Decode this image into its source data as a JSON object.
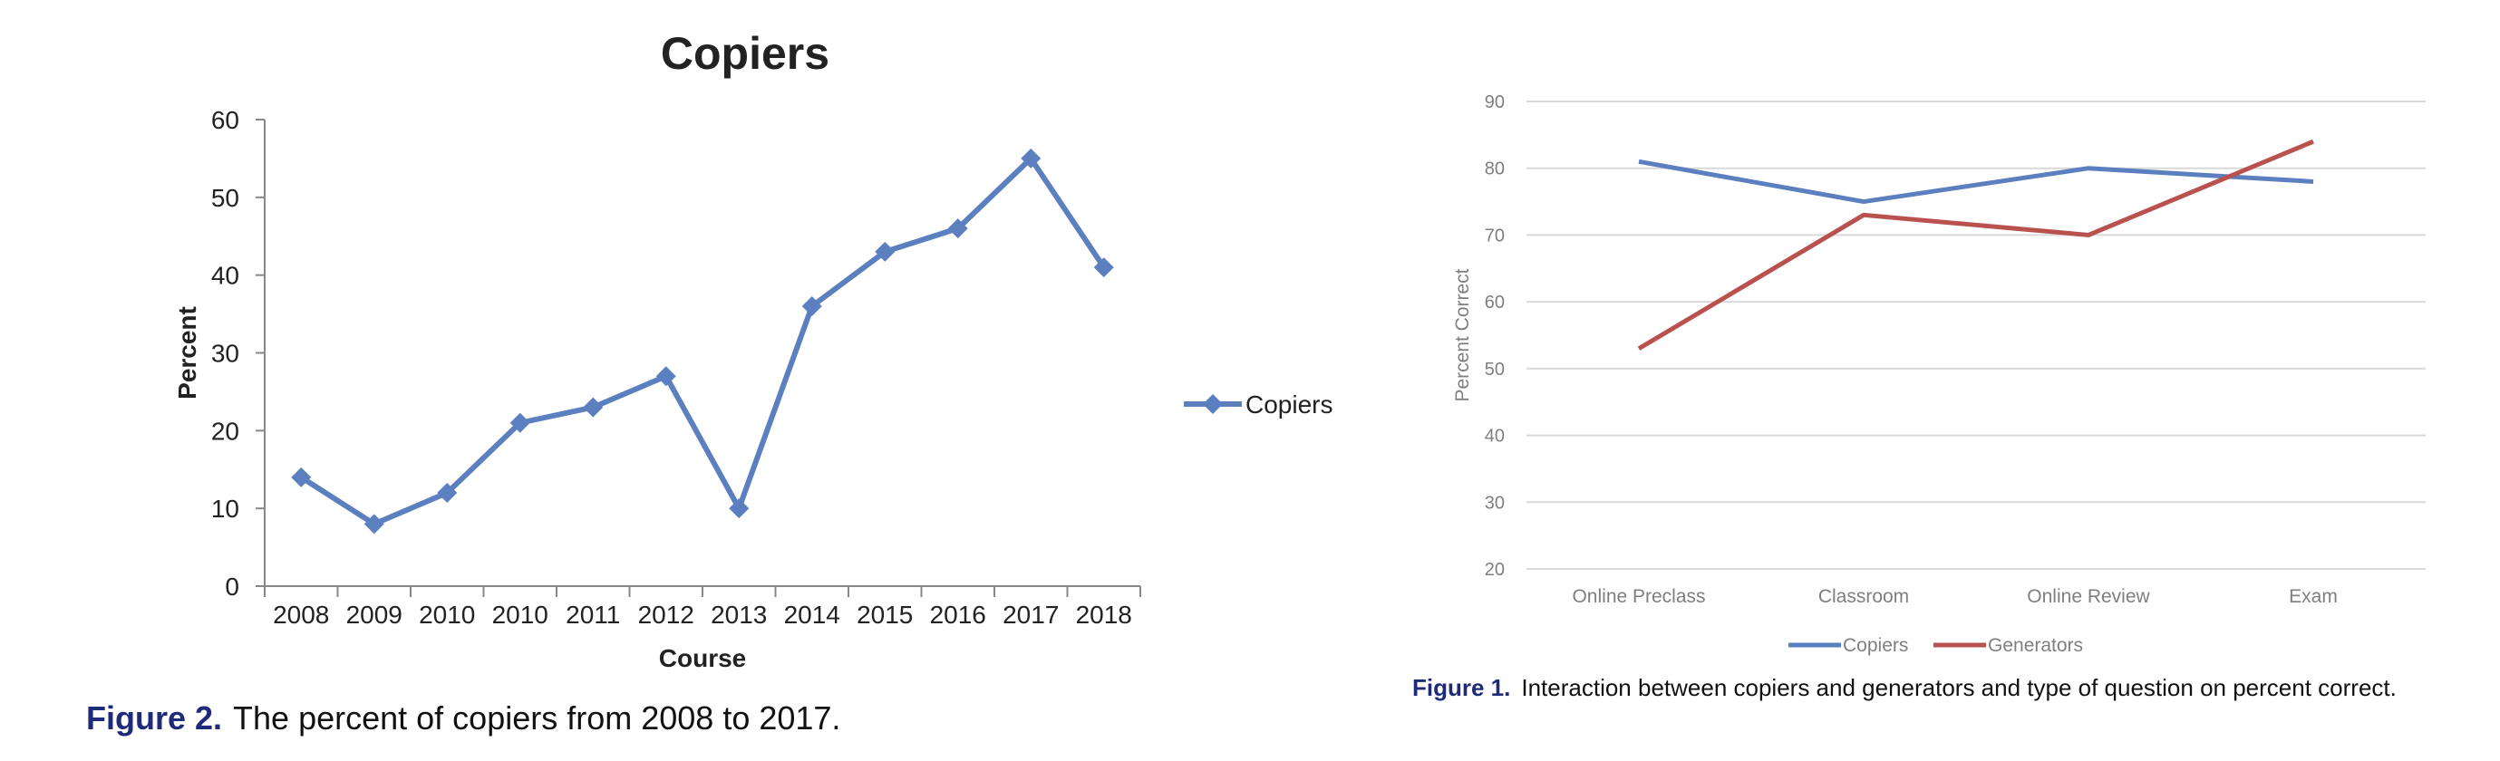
{
  "figure_left": {
    "caption_label": "Figure 2.",
    "caption_text": "The percent of copiers from 2008 to 2017."
  },
  "figure_right": {
    "caption_label": "Figure 1.",
    "caption_text": "Interaction between copiers and generators and type of question on percent correct."
  },
  "chart_data": [
    {
      "type": "line",
      "title": "Copiers",
      "xlabel": "Course",
      "ylabel": "Percent",
      "categories": [
        "2008",
        "2009",
        "2010",
        "2010",
        "2011",
        "2012",
        "2013",
        "2014",
        "2015",
        "2016",
        "2017",
        "2018"
      ],
      "series": [
        {
          "name": "Copiers",
          "values": [
            14,
            8,
            12,
            21,
            23,
            27,
            10,
            36,
            43,
            46,
            55,
            41
          ],
          "color": "#5b7fbf",
          "marker": "diamond"
        }
      ],
      "ylim": [
        0,
        60
      ],
      "yticks": [
        0,
        10,
        20,
        30,
        40,
        50,
        60
      ],
      "grid": false,
      "legend": "right"
    },
    {
      "type": "line",
      "title": "",
      "xlabel": "",
      "ylabel": "Percent Correct",
      "categories": [
        "Online Preclass",
        "Classroom",
        "Online Review",
        "Exam"
      ],
      "series": [
        {
          "name": "Copiers",
          "values": [
            81,
            75,
            80,
            78
          ],
          "color": "#5b7fbf"
        },
        {
          "name": "Generators",
          "values": [
            53,
            73,
            70,
            84
          ],
          "color": "#b9514f"
        }
      ],
      "ylim": [
        20,
        90
      ],
      "yticks": [
        20,
        30,
        40,
        50,
        60,
        70,
        80,
        90
      ],
      "grid": true,
      "legend": "bottom"
    }
  ]
}
